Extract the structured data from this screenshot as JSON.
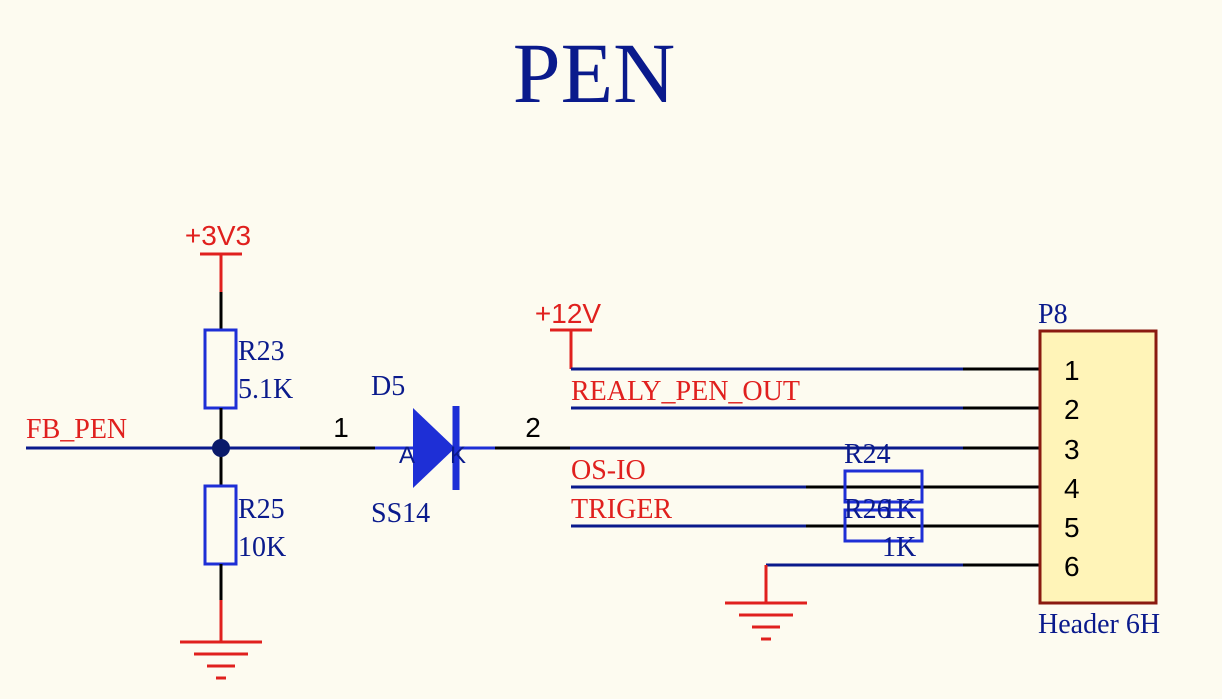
{
  "title": "PEN",
  "colors": {
    "background": "#fdfbf0",
    "wire_blue": "#0a1a8c",
    "wire_black": "#000000",
    "component_blue": "#1e2fd6",
    "net_red": "#e0201e",
    "text_navy": "#0a1a8c",
    "header_fill": "#fff4b8",
    "header_border": "#8a1a10",
    "junction": "#0a1a6a"
  },
  "power": {
    "v3v3": "+3V3",
    "v12": "+12V"
  },
  "nets": {
    "fb_pen": "FB_PEN",
    "realy_pen_out": "REALY_PEN_OUT",
    "os_io": "OS-IO",
    "triger": "TRIGER"
  },
  "r23": {
    "designator": "R23",
    "value": "5.1K"
  },
  "r25": {
    "designator": "R25",
    "value": "10K"
  },
  "r24": {
    "designator": "R24",
    "value": "1K"
  },
  "r26": {
    "designator": "R26",
    "value": "1K"
  },
  "d5": {
    "designator": "D5",
    "value": "SS14",
    "pin1": "1",
    "pin2": "2",
    "anode": "A",
    "cathode": "K"
  },
  "p8": {
    "designator": "P8",
    "value": "Header 6H",
    "pins": [
      "1",
      "2",
      "3",
      "4",
      "5",
      "6"
    ]
  }
}
